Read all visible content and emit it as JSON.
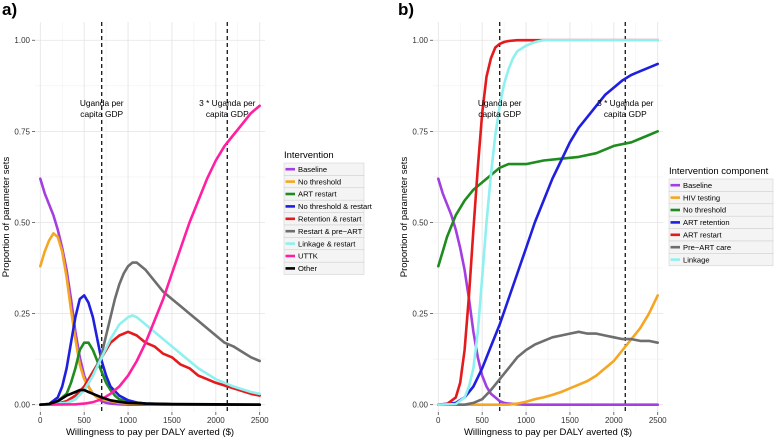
{
  "chart_data": [
    {
      "panel": "a)",
      "type": "line",
      "xlabel": "Willingness to pay per DALY averted ($)",
      "ylabel": "Proportion of parameter sets",
      "xlim": [
        -60,
        2560
      ],
      "ylim": [
        -0.02,
        1.05
      ],
      "xticks": [
        0,
        500,
        1000,
        1500,
        2000,
        2500
      ],
      "yticks": [
        0.0,
        0.25,
        0.5,
        0.75,
        1.0
      ],
      "ytick_labels": [
        "0.00",
        "0.25",
        "0.50",
        "0.75",
        "1.00"
      ],
      "grid": true,
      "legend_title": "Intervention",
      "vlines": [
        700,
        2130
      ],
      "annotations": [
        {
          "lines": [
            "Uganda per",
            "capita GDP"
          ],
          "x": 700,
          "y": 0.82
        },
        {
          "lines": [
            "3 * Uganda per",
            "capita GDP"
          ],
          "x": 2130,
          "y": 0.82
        }
      ],
      "series": [
        {
          "name": "Baseline",
          "color": "#a33ee0",
          "x": [
            0,
            50,
            100,
            150,
            200,
            250,
            300,
            350,
            400,
            450,
            500,
            550,
            600,
            650,
            700,
            750,
            800,
            900,
            1000,
            1200,
            1500,
            2000,
            2500
          ],
          "y": [
            0.62,
            0.58,
            0.55,
            0.52,
            0.48,
            0.43,
            0.37,
            0.29,
            0.2,
            0.13,
            0.08,
            0.05,
            0.03,
            0.02,
            0.01,
            0.005,
            0.003,
            0.001,
            0,
            0,
            0,
            0,
            0
          ]
        },
        {
          "name": "No threshold",
          "color": "#f5a623",
          "x": [
            0,
            50,
            100,
            150,
            200,
            250,
            300,
            350,
            400,
            450,
            500,
            550,
            600,
            650,
            700,
            800,
            900,
            1000,
            1500,
            2000,
            2500
          ],
          "y": [
            0.38,
            0.42,
            0.45,
            0.47,
            0.46,
            0.42,
            0.35,
            0.26,
            0.18,
            0.11,
            0.07,
            0.05,
            0.03,
            0.02,
            0.015,
            0.01,
            0.005,
            0.003,
            0.001,
            0,
            0
          ]
        },
        {
          "name": "ART restart",
          "color": "#1e8c1e",
          "x": [
            0,
            100,
            200,
            300,
            350,
            400,
            450,
            500,
            550,
            600,
            650,
            700,
            750,
            800,
            850,
            900,
            1000,
            1200,
            1500,
            2000,
            2500
          ],
          "y": [
            0,
            0.002,
            0.01,
            0.03,
            0.06,
            0.1,
            0.15,
            0.17,
            0.17,
            0.15,
            0.12,
            0.09,
            0.06,
            0.04,
            0.025,
            0.015,
            0.008,
            0.003,
            0.001,
            0,
            0
          ]
        },
        {
          "name": "No threshold & restart",
          "color": "#1f1fe0",
          "x": [
            0,
            100,
            200,
            250,
            300,
            350,
            400,
            450,
            500,
            550,
            600,
            650,
            700,
            750,
            800,
            900,
            1000,
            1100,
            1200,
            1500,
            2000,
            2500
          ],
          "y": [
            0,
            0.002,
            0.02,
            0.05,
            0.1,
            0.17,
            0.24,
            0.29,
            0.3,
            0.28,
            0.24,
            0.18,
            0.12,
            0.08,
            0.05,
            0.025,
            0.012,
            0.006,
            0.003,
            0.001,
            0,
            0
          ]
        },
        {
          "name": "Retention & restart",
          "color": "#e41a1c",
          "x": [
            0,
            200,
            300,
            400,
            500,
            600,
            700,
            800,
            900,
            1000,
            1100,
            1200,
            1300,
            1400,
            1500,
            1600,
            1700,
            1800,
            1900,
            2000,
            2200,
            2400,
            2500
          ],
          "y": [
            0,
            0.003,
            0.01,
            0.025,
            0.05,
            0.09,
            0.13,
            0.17,
            0.19,
            0.2,
            0.19,
            0.17,
            0.16,
            0.14,
            0.13,
            0.11,
            0.1,
            0.08,
            0.07,
            0.06,
            0.045,
            0.03,
            0.025
          ]
        },
        {
          "name": "Restart & pre−ART",
          "color": "#6e6e6e",
          "x": [
            0,
            300,
            400,
            500,
            600,
            700,
            750,
            800,
            850,
            900,
            950,
            1000,
            1050,
            1100,
            1150,
            1200,
            1300,
            1400,
            1500,
            1600,
            1700,
            1800,
            1900,
            2000,
            2100,
            2200,
            2300,
            2400,
            2500
          ],
          "y": [
            0,
            0.005,
            0.015,
            0.04,
            0.08,
            0.14,
            0.19,
            0.24,
            0.29,
            0.33,
            0.36,
            0.38,
            0.39,
            0.39,
            0.38,
            0.37,
            0.34,
            0.31,
            0.29,
            0.27,
            0.25,
            0.23,
            0.21,
            0.19,
            0.17,
            0.16,
            0.145,
            0.13,
            0.12
          ]
        },
        {
          "name": "Linkage & restart",
          "color": "#8ff0f0",
          "x": [
            0,
            300,
            400,
            500,
            600,
            700,
            800,
            900,
            1000,
            1050,
            1100,
            1200,
            1300,
            1400,
            1500,
            1600,
            1700,
            1800,
            1900,
            2000,
            2200,
            2400,
            2500
          ],
          "y": [
            0,
            0.005,
            0.015,
            0.04,
            0.08,
            0.13,
            0.18,
            0.22,
            0.24,
            0.245,
            0.24,
            0.22,
            0.2,
            0.18,
            0.16,
            0.14,
            0.12,
            0.1,
            0.085,
            0.07,
            0.05,
            0.035,
            0.03
          ]
        },
        {
          "name": "UTTK",
          "color": "#ff1fa0",
          "x": [
            0,
            400,
            500,
            600,
            700,
            800,
            900,
            1000,
            1100,
            1200,
            1300,
            1400,
            1500,
            1600,
            1700,
            1800,
            1900,
            2000,
            2100,
            2200,
            2300,
            2400,
            2500
          ],
          "y": [
            0,
            0.001,
            0.003,
            0.007,
            0.015,
            0.03,
            0.05,
            0.08,
            0.12,
            0.17,
            0.23,
            0.29,
            0.36,
            0.43,
            0.5,
            0.56,
            0.62,
            0.67,
            0.71,
            0.74,
            0.77,
            0.8,
            0.82
          ]
        },
        {
          "name": "Other",
          "color": "#000000",
          "x": [
            0,
            100,
            200,
            300,
            400,
            450,
            500,
            550,
            600,
            700,
            800,
            900,
            1000,
            1200,
            1500,
            2000,
            2500
          ],
          "y": [
            0,
            0.002,
            0.01,
            0.025,
            0.035,
            0.04,
            0.04,
            0.035,
            0.03,
            0.02,
            0.012,
            0.008,
            0.005,
            0.003,
            0.002,
            0.001,
            0
          ]
        }
      ]
    },
    {
      "panel": "b)",
      "type": "line",
      "xlabel": "Willingness to pay per DALY averted ($)",
      "ylabel": "Proportion of parameter sets",
      "xlim": [
        -60,
        2560
      ],
      "ylim": [
        -0.02,
        1.05
      ],
      "xticks": [
        0,
        500,
        1000,
        1500,
        2000,
        2500
      ],
      "yticks": [
        0.0,
        0.25,
        0.5,
        0.75,
        1.0
      ],
      "ytick_labels": [
        "0.00",
        "0.25",
        "0.50",
        "0.75",
        "1.00"
      ],
      "grid": true,
      "legend_title": "Intervention component",
      "vlines": [
        700,
        2130
      ],
      "annotations": [
        {
          "lines": [
            "Uganda per",
            "capita GDP"
          ],
          "x": 700,
          "y": 0.82
        },
        {
          "lines": [
            "3 * Uganda per",
            "capita GDP"
          ],
          "x": 2130,
          "y": 0.82
        }
      ],
      "series": [
        {
          "name": "Baseline",
          "color": "#a33ee0",
          "x": [
            0,
            50,
            100,
            150,
            200,
            250,
            300,
            350,
            400,
            450,
            500,
            550,
            600,
            650,
            700,
            750,
            800,
            900,
            1000,
            1500,
            2000,
            2500
          ],
          "y": [
            0.62,
            0.58,
            0.55,
            0.52,
            0.48,
            0.43,
            0.37,
            0.29,
            0.2,
            0.13,
            0.08,
            0.05,
            0.03,
            0.02,
            0.01,
            0.005,
            0.003,
            0.001,
            0,
            0,
            0,
            0
          ]
        },
        {
          "name": "HIV testing",
          "color": "#f5a623",
          "x": [
            0,
            800,
            900,
            1000,
            1100,
            1200,
            1300,
            1400,
            1500,
            1600,
            1700,
            1800,
            1900,
            2000,
            2100,
            2200,
            2300,
            2400,
            2500
          ],
          "y": [
            0,
            0,
            0.003,
            0.008,
            0.015,
            0.02,
            0.027,
            0.035,
            0.045,
            0.055,
            0.065,
            0.08,
            0.1,
            0.12,
            0.15,
            0.18,
            0.21,
            0.25,
            0.3
          ]
        },
        {
          "name": "No threshold",
          "color": "#1e8c1e",
          "x": [
            0,
            50,
            100,
            200,
            300,
            400,
            500,
            600,
            700,
            800,
            900,
            1000,
            1200,
            1400,
            1600,
            1800,
            2000,
            2200,
            2400,
            2500
          ],
          "y": [
            0.38,
            0.42,
            0.46,
            0.52,
            0.56,
            0.59,
            0.61,
            0.63,
            0.65,
            0.66,
            0.66,
            0.66,
            0.67,
            0.675,
            0.68,
            0.69,
            0.71,
            0.72,
            0.74,
            0.75
          ]
        },
        {
          "name": "ART retention",
          "color": "#1f1fe0",
          "x": [
            0,
            200,
            300,
            400,
            500,
            600,
            700,
            800,
            900,
            1000,
            1100,
            1200,
            1300,
            1400,
            1500,
            1600,
            1700,
            1800,
            1900,
            2000,
            2100,
            2200,
            2300,
            2400,
            2500
          ],
          "y": [
            0,
            0.005,
            0.02,
            0.05,
            0.1,
            0.16,
            0.22,
            0.29,
            0.36,
            0.43,
            0.5,
            0.56,
            0.62,
            0.67,
            0.72,
            0.76,
            0.79,
            0.82,
            0.85,
            0.87,
            0.89,
            0.905,
            0.915,
            0.925,
            0.935
          ]
        },
        {
          "name": "ART restart",
          "color": "#e41a1c",
          "x": [
            0,
            100,
            200,
            250,
            300,
            350,
            400,
            450,
            500,
            550,
            600,
            650,
            700,
            750,
            800,
            900,
            1000,
            1200,
            1500,
            2000,
            2500
          ],
          "y": [
            0,
            0.002,
            0.02,
            0.06,
            0.15,
            0.3,
            0.48,
            0.65,
            0.8,
            0.9,
            0.95,
            0.98,
            0.99,
            0.995,
            0.998,
            1,
            1,
            1,
            1,
            1,
            1
          ]
        },
        {
          "name": "Pre−ART care",
          "color": "#6e6e6e",
          "x": [
            0,
            300,
            400,
            500,
            600,
            700,
            800,
            900,
            1000,
            1100,
            1200,
            1300,
            1400,
            1500,
            1600,
            1700,
            1800,
            1900,
            2000,
            2100,
            2200,
            2300,
            2400,
            2500
          ],
          "y": [
            0,
            0,
            0.005,
            0.015,
            0.04,
            0.07,
            0.1,
            0.13,
            0.15,
            0.165,
            0.175,
            0.185,
            0.19,
            0.195,
            0.2,
            0.195,
            0.195,
            0.19,
            0.185,
            0.18,
            0.18,
            0.175,
            0.175,
            0.17
          ]
        },
        {
          "name": "Linkage",
          "color": "#8ff0f0",
          "x": [
            0,
            200,
            300,
            350,
            400,
            450,
            500,
            550,
            600,
            650,
            700,
            750,
            800,
            850,
            900,
            1000,
            1100,
            1200,
            1500,
            2000,
            2500
          ],
          "y": [
            0,
            0.002,
            0.02,
            0.05,
            0.1,
            0.2,
            0.35,
            0.5,
            0.63,
            0.74,
            0.82,
            0.88,
            0.92,
            0.95,
            0.97,
            0.985,
            0.995,
            1,
            1,
            1,
            1
          ]
        }
      ]
    }
  ]
}
